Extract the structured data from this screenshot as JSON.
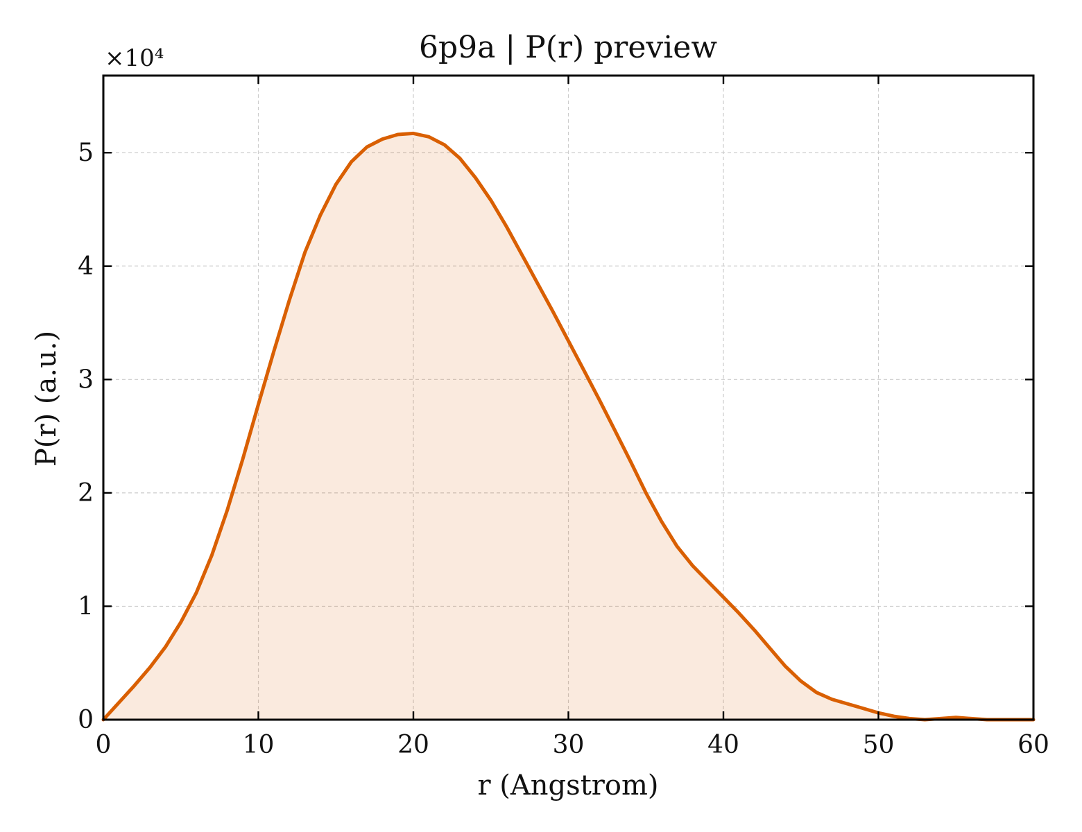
{
  "chart_data": {
    "type": "area",
    "title": "6p9a | P(r) preview",
    "xlabel": "r (Angstrom)",
    "ylabel": "P(r) (a.u.)",
    "y_multiplier_label": "×10⁴",
    "xlim": [
      0,
      60
    ],
    "ylim": [
      0,
      5.68
    ],
    "xticks": [
      0,
      10,
      20,
      30,
      40,
      50,
      60
    ],
    "yticks": [
      0,
      1,
      2,
      3,
      4,
      5
    ],
    "grid": true,
    "line_color": "#d95f02",
    "fill_color": "#d95f02",
    "series": [
      {
        "x": [
          0,
          1,
          2,
          3,
          4,
          5,
          6,
          7,
          8,
          9,
          10,
          11,
          12,
          13,
          14,
          15,
          16,
          17,
          18,
          19,
          20,
          21,
          22,
          23,
          24,
          25,
          26,
          27,
          28,
          29,
          30,
          31,
          32,
          33,
          34,
          35,
          36,
          37,
          38,
          39,
          40,
          41,
          42,
          43,
          44,
          45,
          46,
          47,
          48,
          49,
          50,
          51,
          52,
          53,
          54,
          55,
          56,
          57,
          58,
          59,
          60
        ],
        "y": [
          0.0,
          0.15,
          0.3,
          0.46,
          0.64,
          0.86,
          1.12,
          1.45,
          1.85,
          2.3,
          2.78,
          3.25,
          3.7,
          4.12,
          4.45,
          4.72,
          4.92,
          5.05,
          5.12,
          5.16,
          5.17,
          5.14,
          5.07,
          4.95,
          4.78,
          4.58,
          4.35,
          4.1,
          3.85,
          3.6,
          3.34,
          3.08,
          2.82,
          2.55,
          2.28,
          2.0,
          1.75,
          1.53,
          1.36,
          1.22,
          1.08,
          0.94,
          0.79,
          0.63,
          0.47,
          0.34,
          0.24,
          0.18,
          0.14,
          0.1,
          0.06,
          0.03,
          0.01,
          0.0,
          0.01,
          0.02,
          0.01,
          0.0,
          0.0,
          0.0,
          0.0
        ]
      }
    ]
  }
}
